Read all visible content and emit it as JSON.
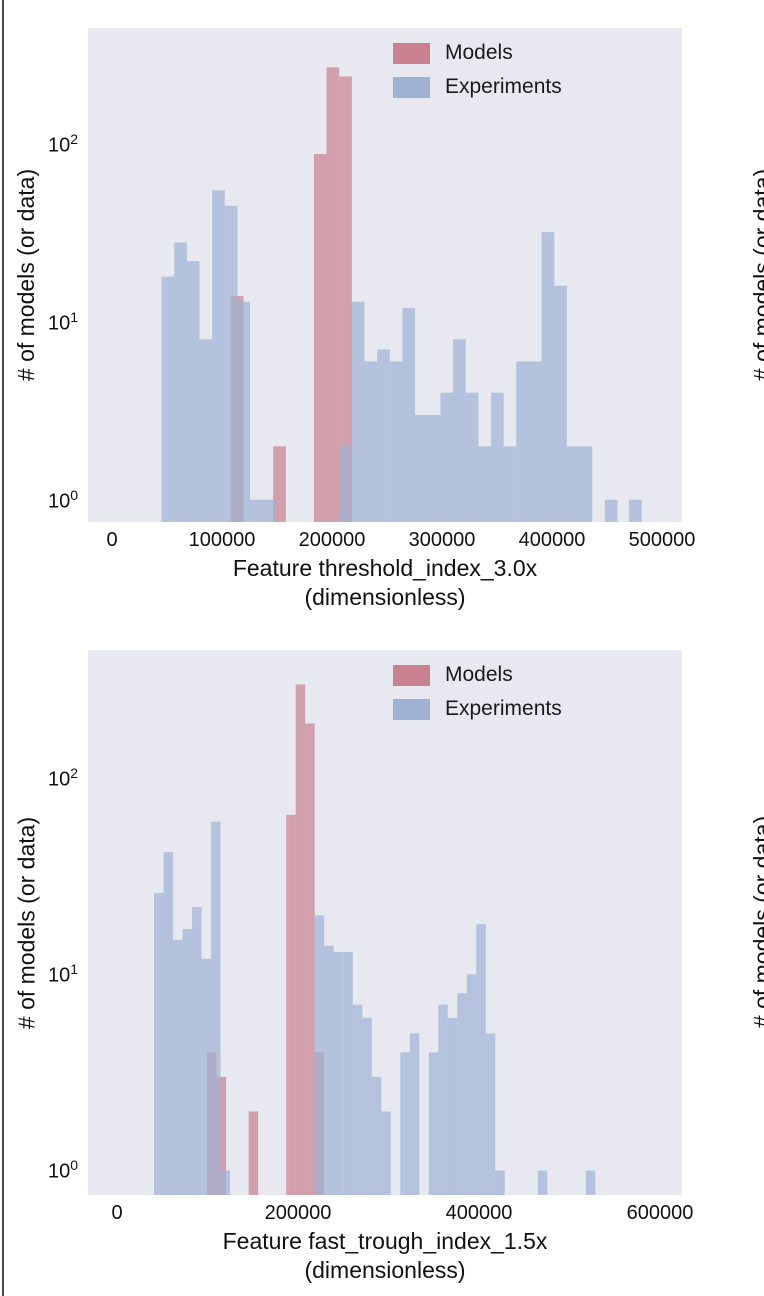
{
  "chart_data": [
    {
      "type": "bar",
      "subtype": "histogram",
      "title": "",
      "xlabel": "Feature threshold_index_3.0x (dimensionless)",
      "xlabel_lines": [
        "Feature threshold_index_3.0x",
        "(dimensionless)"
      ],
      "ylabel": "# of models (or data)",
      "yscale": "log",
      "xlim": [
        -18000,
        520000
      ],
      "ylim": [
        0.75,
        450
      ],
      "xticks": [
        0,
        100000,
        200000,
        300000,
        400000,
        500000
      ],
      "yticks": [
        1,
        10,
        100
      ],
      "grid": false,
      "legend_position": "upper right",
      "bin_width": 11500,
      "series": [
        {
          "name": "Models",
          "color": "#c9808f",
          "alpha": 0.7,
          "bins": [
            [
              108000,
              14
            ],
            [
              146500,
              2
            ],
            [
              183500,
              88
            ],
            [
              195000,
              270
            ],
            [
              206500,
              240
            ]
          ]
        },
        {
          "name": "Experiments",
          "color": "#9fb2d4",
          "alpha": 0.7,
          "bins": [
            [
              45000,
              18
            ],
            [
              56500,
              28
            ],
            [
              68000,
              22
            ],
            [
              79500,
              8
            ],
            [
              91000,
              55
            ],
            [
              102500,
              45
            ],
            [
              114000,
              13
            ],
            [
              125500,
              1
            ],
            [
              137000,
              1
            ],
            [
              206500,
              2
            ],
            [
              218000,
              13
            ],
            [
              229500,
              6
            ],
            [
              241000,
              7
            ],
            [
              252500,
              6
            ],
            [
              264000,
              12
            ],
            [
              275500,
              3
            ],
            [
              287000,
              3
            ],
            [
              298500,
              4
            ],
            [
              310000,
              8
            ],
            [
              321500,
              4
            ],
            [
              333000,
              2
            ],
            [
              344500,
              4
            ],
            [
              356000,
              2
            ],
            [
              367500,
              6
            ],
            [
              379000,
              6
            ],
            [
              390500,
              32
            ],
            [
              402000,
              16
            ],
            [
              413500,
              2
            ],
            [
              425000,
              2
            ],
            [
              448000,
              1
            ],
            [
              470000,
              1
            ]
          ]
        }
      ]
    },
    {
      "type": "bar",
      "subtype": "histogram",
      "title": "",
      "xlabel": "Feature fast_trough_index_1.5x (dimensionless)",
      "xlabel_lines": [
        "Feature fast_trough_index_1.5x",
        "(dimensionless)"
      ],
      "ylabel": "# of models (or data)",
      "yscale": "log",
      "xlim": [
        -32000,
        630000
      ],
      "ylim": [
        0.75,
        450
      ],
      "xticks": [
        0,
        200000,
        400000,
        600000
      ],
      "yticks": [
        1,
        10,
        100
      ],
      "grid": false,
      "legend_position": "upper right",
      "bin_width": 10500,
      "series": [
        {
          "name": "Models",
          "color": "#c9808f",
          "alpha": 0.7,
          "bins": [
            [
              99500,
              4
            ],
            [
              110000,
              3
            ],
            [
              145500,
              2
            ],
            [
              187000,
              65
            ],
            [
              197500,
              300
            ],
            [
              208000,
              190
            ],
            [
              218500,
              4
            ]
          ]
        },
        {
          "name": "Experiments",
          "color": "#9fb2d4",
          "alpha": 0.7,
          "bins": [
            [
              41000,
              26
            ],
            [
              51500,
              42
            ],
            [
              62000,
              15
            ],
            [
              72500,
              17
            ],
            [
              83000,
              22
            ],
            [
              93500,
              12
            ],
            [
              104000,
              60
            ],
            [
              114500,
              1
            ],
            [
              218500,
              20
            ],
            [
              229000,
              14
            ],
            [
              239500,
              13
            ],
            [
              250000,
              13
            ],
            [
              260500,
              7
            ],
            [
              271000,
              6
            ],
            [
              281500,
              3
            ],
            [
              292000,
              2
            ],
            [
              313000,
              4
            ],
            [
              323500,
              5
            ],
            [
              344500,
              4
            ],
            [
              355000,
              7
            ],
            [
              365500,
              6
            ],
            [
              376000,
              8
            ],
            [
              386500,
              10
            ],
            [
              397000,
              18
            ],
            [
              407500,
              5
            ],
            [
              418000,
              1
            ],
            [
              465000,
              1
            ],
            [
              518000,
              1
            ]
          ]
        }
      ]
    }
  ]
}
